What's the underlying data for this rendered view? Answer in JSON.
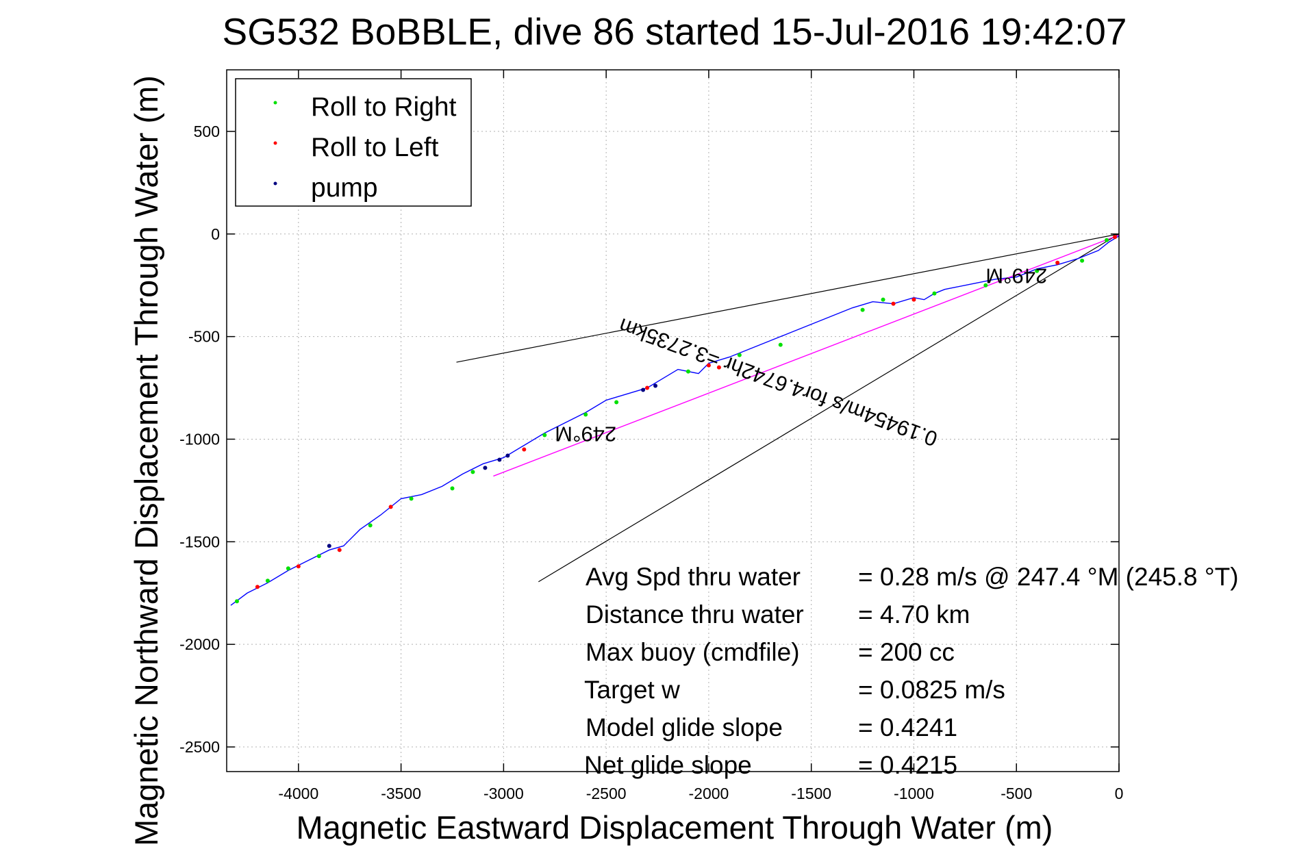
{
  "chart_data": {
    "type": "line",
    "title": "SG532 BoBBLE, dive 86 started 15-Jul-2016 19:42:07",
    "xlabel": "Magnetic Eastward Displacement Through Water (m)",
    "ylabel": "Magnetic Northward Displacement Through Water (m)",
    "xlim": [
      -4350,
      0
    ],
    "ylim": [
      -2620,
      800
    ],
    "x_ticks": [
      -4000,
      -3500,
      -3000,
      -2500,
      -2000,
      -1500,
      -1000,
      -500,
      0
    ],
    "x_tick_labels": [
      "-4000",
      "-3500",
      "-3000",
      "-2500",
      "-2000",
      "-1500",
      "-1000",
      "-500",
      "0"
    ],
    "y_ticks": [
      500,
      0,
      -500,
      -1000,
      -1500,
      -2000,
      -2500
    ],
    "y_tick_labels": [
      "500",
      "0",
      "-500",
      "-1000",
      "-1500",
      "-2000",
      "-2500"
    ],
    "grid": true,
    "legend_position": "top-left",
    "legend": [
      {
        "label": "Roll to Right",
        "color": "#00e000"
      },
      {
        "label": "Roll to Left",
        "color": "#ff0000"
      },
      {
        "label": "pump",
        "color": "#000080"
      }
    ],
    "series": [
      {
        "name": "track",
        "color": "#0000ff",
        "x": [
          -4330,
          -4250,
          -4150,
          -4050,
          -3950,
          -3850,
          -3780,
          -3700,
          -3600,
          -3550,
          -3500,
          -3400,
          -3300,
          -3200,
          -3100,
          -3000,
          -2900,
          -2800,
          -2700,
          -2600,
          -2500,
          -2400,
          -2300,
          -2250,
          -2150,
          -2050,
          -2000,
          -1900,
          -1800,
          -1700,
          -1600,
          -1500,
          -1400,
          -1300,
          -1200,
          -1100,
          -1000,
          -950,
          -900,
          -850,
          -800,
          -700,
          -600,
          -500,
          -400,
          -300,
          -200,
          -100,
          -50,
          0
        ],
        "y": [
          -1810,
          -1750,
          -1700,
          -1640,
          -1590,
          -1540,
          -1520,
          -1440,
          -1370,
          -1330,
          -1290,
          -1270,
          -1230,
          -1170,
          -1120,
          -1090,
          -1030,
          -970,
          -920,
          -870,
          -810,
          -780,
          -750,
          -720,
          -660,
          -680,
          -630,
          -600,
          -560,
          -520,
          -480,
          -440,
          -400,
          -360,
          -330,
          -340,
          -310,
          -320,
          -290,
          -270,
          -260,
          -240,
          -220,
          -210,
          -170,
          -150,
          -120,
          -80,
          -40,
          -10
        ]
      },
      {
        "name": "mean current",
        "color": "#ff00ff",
        "x": [
          -3050,
          0
        ],
        "y": [
          -1180,
          -5
        ]
      }
    ],
    "points": {
      "roll_right": {
        "x": [
          -4300,
          -4150,
          -4050,
          -3900,
          -3650,
          -3450,
          -3250,
          -3150,
          -2800,
          -2600,
          -2450,
          -2100,
          -1850,
          -1650,
          -1250,
          -1150,
          -900,
          -650,
          -400,
          -180,
          -60
        ],
        "y": [
          -1790,
          -1690,
          -1630,
          -1570,
          -1420,
          -1290,
          -1240,
          -1160,
          -980,
          -880,
          -820,
          -670,
          -590,
          -540,
          -370,
          -320,
          -290,
          -250,
          -180,
          -130,
          -30
        ]
      },
      "roll_left": {
        "x": [
          -4200,
          -4000,
          -3800,
          -3550,
          -2900,
          -2300,
          -2000,
          -1950,
          -1100,
          -1000,
          -300,
          -20
        ],
        "y": [
          -1720,
          -1620,
          -1540,
          -1330,
          -1050,
          -750,
          -640,
          -650,
          -340,
          -320,
          -140,
          -15
        ]
      },
      "pump": {
        "x": [
          -3850,
          -3090,
          -3020,
          -2980,
          -2320,
          -2260
        ],
        "y": [
          -1520,
          -1140,
          -1100,
          -1080,
          -760,
          -740
        ]
      }
    },
    "reference_lines": [
      {
        "x": [
          -3230,
          0
        ],
        "y": [
          -625,
          0
        ]
      },
      {
        "x": [
          -2830,
          0
        ],
        "y": [
          -1695,
          0
        ]
      }
    ],
    "annotations": [
      {
        "text": "249°M",
        "x": -2600,
        "y": -940,
        "rotation_deg": 180
      },
      {
        "text": "249°M",
        "x": -500,
        "y": -170,
        "rotation_deg": 180
      },
      {
        "text": "0.19454m/s for4.6742hr =3.2735km",
        "x": -1650,
        "y": -690,
        "rotation_deg": 200
      }
    ]
  },
  "stats": [
    {
      "label": "Avg Spd thru water",
      "value": "=  0.28 m/s @ 247.4 °M (245.8 °T)"
    },
    {
      "label": "Distance thru water",
      "value": "=  4.70 km"
    },
    {
      "label": "Max buoy (cmdfile)",
      "value": "= 200 cc"
    },
    {
      "label": "Target w",
      "value": "= 0.0825 m/s"
    },
    {
      "label": "Model glide slope",
      "value": "= 0.4241"
    },
    {
      "label": "Net glide slope",
      "value": "= 0.4215"
    }
  ],
  "colors": {
    "grid": "#b0b0b0",
    "axes": "#000000",
    "reference": "#000000"
  }
}
